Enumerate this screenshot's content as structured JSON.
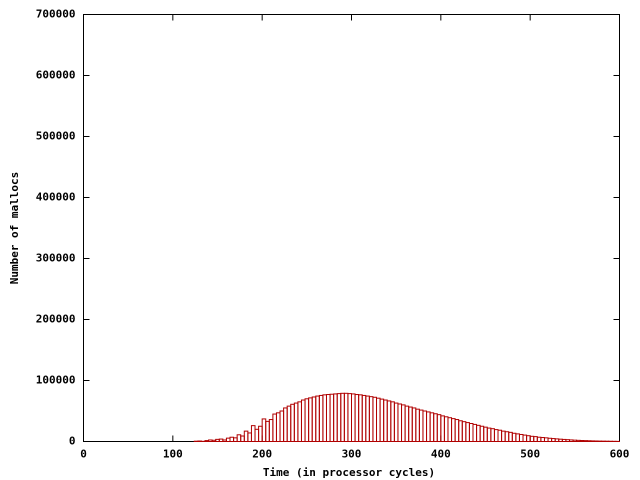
{
  "chart_data": {
    "type": "histogram",
    "xlabel": "Time (in processor cycles)",
    "ylabel": "Number of mallocs",
    "color": "#b00000",
    "bins": [
      124,
      128,
      132,
      136,
      140,
      144,
      148,
      152,
      156,
      160,
      164,
      168,
      172,
      176,
      180,
      184,
      188,
      192,
      196,
      200,
      204,
      208,
      212,
      216,
      220,
      224,
      228,
      232,
      236,
      240,
      244,
      248,
      252,
      256,
      260,
      264,
      268,
      272,
      276,
      280,
      284,
      288,
      292,
      296,
      300,
      304,
      308,
      312,
      316,
      320,
      324,
      328,
      332,
      336,
      340,
      344,
      348,
      352,
      356,
      360,
      364,
      368,
      372,
      376,
      380,
      384,
      388,
      392,
      396,
      400,
      404,
      408,
      412,
      416,
      420,
      424,
      428,
      432,
      436,
      440,
      444,
      448,
      452,
      456,
      460,
      464,
      468,
      472,
      476,
      480,
      484,
      488,
      492,
      496,
      500,
      504,
      508,
      512,
      516,
      520,
      524,
      528,
      532,
      536,
      540,
      544,
      548,
      552,
      556,
      560,
      564,
      568,
      572,
      576,
      580,
      584,
      588,
      592,
      596,
      600
    ],
    "values": [
      500,
      800,
      300,
      1500,
      2500,
      2000,
      3500,
      4000,
      2500,
      5500,
      7000,
      6000,
      11000,
      9000,
      17000,
      14000,
      26000,
      20000,
      25000,
      37000,
      33000,
      36000,
      45000,
      47000,
      50000,
      55000,
      58000,
      61000,
      63000,
      65000,
      68000,
      70000,
      71500,
      73000,
      74500,
      75500,
      76500,
      77000,
      77500,
      78000,
      78500,
      79000,
      79000,
      78500,
      78000,
      77000,
      76500,
      75500,
      74500,
      73500,
      72500,
      71000,
      69500,
      68000,
      66500,
      65000,
      63000,
      61500,
      60000,
      58000,
      56500,
      55000,
      53000,
      51500,
      50000,
      48500,
      47000,
      45500,
      44000,
      42000,
      40500,
      39000,
      37500,
      36000,
      34000,
      32500,
      31000,
      29500,
      28000,
      26500,
      25000,
      23500,
      22000,
      21000,
      19500,
      18500,
      17000,
      16000,
      15000,
      13500,
      12500,
      11500,
      10500,
      9500,
      8500,
      8000,
      7000,
      6500,
      6000,
      5300,
      4800,
      4300,
      3800,
      3400,
      3000,
      2600,
      2200,
      1900,
      1600,
      1400,
      1200,
      1000,
      850,
      700,
      600,
      500,
      400,
      300,
      200
    ],
    "xlim": [
      0,
      600
    ],
    "xticks": [
      0,
      100,
      200,
      300,
      400,
      500,
      600
    ],
    "ylim": [
      0,
      700000
    ],
    "yticks": [
      0,
      100000,
      200000,
      300000,
      400000,
      500000,
      600000,
      700000
    ]
  }
}
